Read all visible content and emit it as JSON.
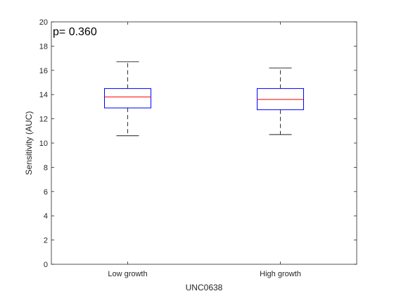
{
  "chart_data": {
    "type": "box",
    "xlabel": "UNC0638",
    "ylabel": "Sensitivity (AUC)",
    "annotation": "p= 0.360",
    "categories": [
      "Low growth",
      "High growth"
    ],
    "ylim": [
      0,
      20
    ],
    "yticks": [
      0,
      2,
      4,
      6,
      8,
      10,
      12,
      14,
      16,
      18,
      20
    ],
    "boxes": [
      {
        "whisker_low": 10.6,
        "q1": 12.9,
        "median": 13.8,
        "q3": 14.5,
        "whisker_high": 16.7
      },
      {
        "whisker_low": 10.7,
        "q1": 12.75,
        "median": 13.6,
        "q3": 14.5,
        "whisker_high": 16.2
      }
    ],
    "grid": false,
    "colors": {
      "box": "#0000ff",
      "median": "#ff0000",
      "whisker": "#000000",
      "axis": "#262626"
    }
  }
}
